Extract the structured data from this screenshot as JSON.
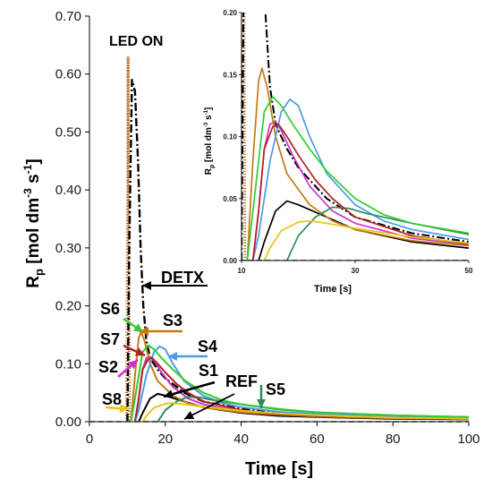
{
  "chart_data": [
    {
      "type": "line",
      "role": "main",
      "xlabel": "Time [s]",
      "ylabel": "Rp [mol dm-3 s-1]",
      "ylabel_parts": {
        "base": "R",
        "sub": "p",
        "unit": " [mol dm",
        "sup1": "-3",
        "mid": " s",
        "sup2": "-1",
        "end": "]"
      },
      "xlim": [
        0,
        100
      ],
      "ylim": [
        0,
        0.7
      ],
      "xticks": [
        "0",
        "20",
        "40",
        "60",
        "80",
        "100"
      ],
      "yticks": [
        "0.00",
        "0.10",
        "0.20",
        "0.30",
        "0.40",
        "0.50",
        "0.60",
        "0.70"
      ],
      "grid": false,
      "annotations": {
        "led_on": "LED ON",
        "detx": "DETX",
        "ref": "REF",
        "s1": "S1",
        "s2": "S2",
        "s3": "S3",
        "s4": "S4",
        "s5": "S5",
        "s6": "S6",
        "s7": "S7",
        "s8": "S8"
      },
      "series": [
        {
          "name": "LED ON",
          "color": "#b5651d",
          "style": "dotted",
          "points": [
            [
              9.8,
              0.0
            ],
            [
              9.8,
              0.02
            ],
            [
              10.0,
              0.3
            ],
            [
              10.2,
              0.63
            ],
            [
              10.4,
              0.3
            ],
            [
              10.6,
              0.0
            ]
          ]
        },
        {
          "name": "DETX",
          "color": "#000000",
          "style": "dashdot",
          "points": [
            [
              10,
              0.0
            ],
            [
              10.5,
              0.3
            ],
            [
              11.2,
              0.59
            ],
            [
              12.0,
              0.57
            ],
            [
              12.8,
              0.45
            ],
            [
              13.5,
              0.3
            ],
            [
              14.2,
              0.2
            ],
            [
              15,
              0.14
            ],
            [
              16,
              0.11
            ],
            [
              18,
              0.09
            ],
            [
              20,
              0.075
            ],
            [
              25,
              0.05
            ],
            [
              30,
              0.035
            ],
            [
              40,
              0.022
            ],
            [
              50,
              0.015
            ],
            [
              60,
              0.012
            ],
            [
              80,
              0.008
            ],
            [
              100,
              0.006
            ]
          ]
        },
        {
          "name": "S1",
          "color": "#000000",
          "style": "solid",
          "points": [
            [
              13,
              0.0
            ],
            [
              14,
              0.015
            ],
            [
              16,
              0.04
            ],
            [
              18,
              0.048
            ],
            [
              20,
              0.045
            ],
            [
              25,
              0.035
            ],
            [
              30,
              0.025
            ],
            [
              40,
              0.015
            ],
            [
              50,
              0.01
            ],
            [
              60,
              0.008
            ],
            [
              80,
              0.005
            ],
            [
              100,
              0.004
            ]
          ]
        },
        {
          "name": "S2",
          "color": "#cc33cc",
          "style": "solid",
          "points": [
            [
              12,
              0.0
            ],
            [
              13,
              0.04
            ],
            [
              14,
              0.09
            ],
            [
              15,
              0.11
            ],
            [
              16,
              0.112
            ],
            [
              17,
              0.105
            ],
            [
              19,
              0.085
            ],
            [
              22,
              0.06
            ],
            [
              26,
              0.04
            ],
            [
              30,
              0.03
            ],
            [
              40,
              0.018
            ],
            [
              50,
              0.013
            ],
            [
              60,
              0.01
            ],
            [
              80,
              0.007
            ],
            [
              100,
              0.005
            ]
          ]
        },
        {
          "name": "S3",
          "color": "#c47a14",
          "style": "solid",
          "points": [
            [
              11,
              0.0
            ],
            [
              12,
              0.08
            ],
            [
              13,
              0.145
            ],
            [
              13.6,
              0.155
            ],
            [
              14.5,
              0.14
            ],
            [
              16,
              0.1
            ],
            [
              18,
              0.07
            ],
            [
              22,
              0.045
            ],
            [
              26,
              0.032
            ],
            [
              30,
              0.025
            ],
            [
              40,
              0.016
            ],
            [
              50,
              0.012
            ],
            [
              60,
              0.009
            ],
            [
              80,
              0.006
            ],
            [
              100,
              0.005
            ]
          ]
        },
        {
          "name": "S4",
          "color": "#4d9be6",
          "style": "solid",
          "points": [
            [
              12,
              0.0
            ],
            [
              13,
              0.02
            ],
            [
              15,
              0.08
            ],
            [
              17,
              0.12
            ],
            [
              18.5,
              0.13
            ],
            [
              20,
              0.125
            ],
            [
              22,
              0.1
            ],
            [
              25,
              0.07
            ],
            [
              30,
              0.045
            ],
            [
              35,
              0.032
            ],
            [
              40,
              0.025
            ],
            [
              50,
              0.017
            ],
            [
              60,
              0.013
            ],
            [
              80,
              0.009
            ],
            [
              100,
              0.007
            ]
          ]
        },
        {
          "name": "S5",
          "color": "#2e8b57",
          "style": "solid",
          "points": [
            [
              18,
              0.0
            ],
            [
              20,
              0.02
            ],
            [
              23,
              0.035
            ],
            [
              26,
              0.043
            ],
            [
              29,
              0.042
            ],
            [
              32,
              0.038
            ],
            [
              40,
              0.03
            ],
            [
              50,
              0.021
            ],
            [
              60,
              0.016
            ],
            [
              80,
              0.011
            ],
            [
              100,
              0.008
            ]
          ]
        },
        {
          "name": "S6",
          "color": "#33cc33",
          "style": "solid",
          "points": [
            [
              11,
              0.0
            ],
            [
              12.5,
              0.06
            ],
            [
              14,
              0.12
            ],
            [
              15.5,
              0.132
            ],
            [
              17,
              0.125
            ],
            [
              19,
              0.11
            ],
            [
              22,
              0.09
            ],
            [
              25,
              0.072
            ],
            [
              30,
              0.05
            ],
            [
              35,
              0.037
            ],
            [
              40,
              0.03
            ],
            [
              50,
              0.022
            ],
            [
              60,
              0.016
            ],
            [
              80,
              0.011
            ],
            [
              100,
              0.008
            ]
          ]
        },
        {
          "name": "S7",
          "color": "#b22222",
          "style": "solid",
          "points": [
            [
              12,
              0.0
            ],
            [
              13,
              0.04
            ],
            [
              14,
              0.09
            ],
            [
              15.5,
              0.108
            ],
            [
              16.5,
              0.11
            ],
            [
              18,
              0.1
            ],
            [
              20,
              0.085
            ],
            [
              23,
              0.065
            ],
            [
              26,
              0.05
            ],
            [
              30,
              0.035
            ],
            [
              40,
              0.02
            ],
            [
              50,
              0.013
            ],
            [
              60,
              0.01
            ],
            [
              80,
              0.007
            ],
            [
              100,
              0.005
            ]
          ]
        },
        {
          "name": "S8",
          "color": "#e6c619",
          "style": "solid",
          "points": [
            [
              14,
              0.0
            ],
            [
              15,
              0.01
            ],
            [
              17,
              0.024
            ],
            [
              20,
              0.031
            ],
            [
              22,
              0.032
            ],
            [
              25,
              0.03
            ],
            [
              30,
              0.026
            ],
            [
              40,
              0.019
            ],
            [
              50,
              0.014
            ],
            [
              60,
              0.011
            ],
            [
              80,
              0.007
            ],
            [
              100,
              0.005
            ]
          ]
        },
        {
          "name": "REF",
          "color": "#555555",
          "style": "dashed",
          "points": [
            [
              0,
              0.0
            ],
            [
              100,
              0.0
            ]
          ]
        }
      ]
    },
    {
      "type": "line",
      "role": "inset",
      "xlabel": "Time [s]",
      "ylabel": "Rp [mol dm-3 s-1]",
      "xlim": [
        10,
        50
      ],
      "ylim": [
        0,
        0.2
      ],
      "xticks": [
        "10",
        "30",
        "50"
      ],
      "yticks": [
        "0.00",
        "0.05",
        "0.10",
        "0.15",
        "0.20"
      ],
      "grid": false
    }
  ]
}
